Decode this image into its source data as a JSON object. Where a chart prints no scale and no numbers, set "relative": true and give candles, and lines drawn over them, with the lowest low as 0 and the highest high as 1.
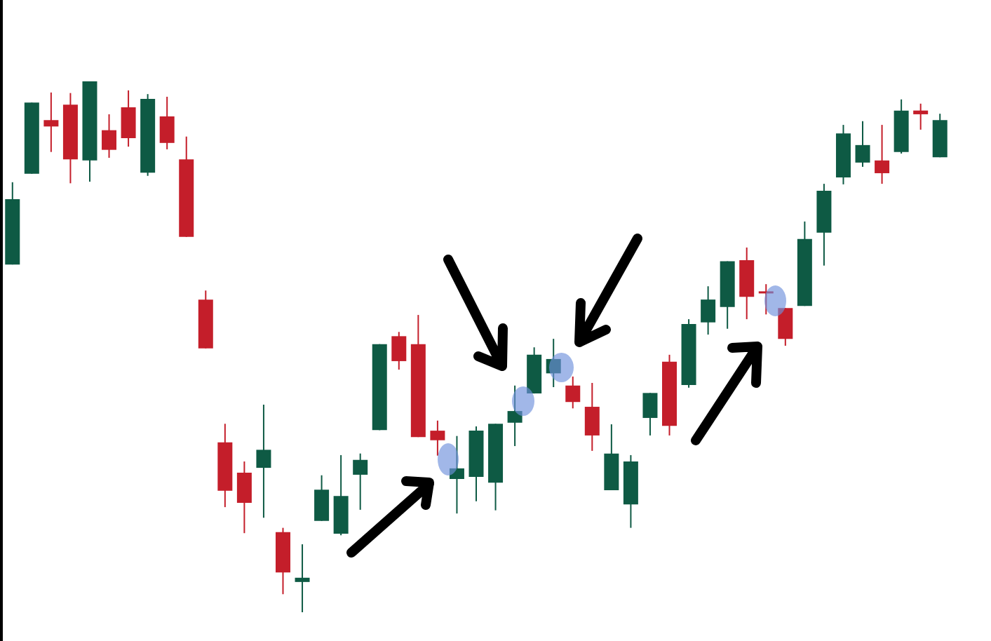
{
  "chart_data": {
    "type": "candlestick",
    "relative": true,
    "categories": [
      null,
      null,
      null,
      null,
      null,
      null,
      null,
      null,
      null,
      null,
      null,
      null,
      null,
      null,
      null,
      null,
      null,
      null,
      null,
      null,
      null,
      null,
      null,
      null,
      null,
      null,
      null,
      null,
      null,
      null,
      null,
      null,
      null,
      null,
      null,
      null,
      null,
      null,
      null,
      null,
      null,
      null,
      null,
      null,
      null,
      null,
      null,
      null,
      null
    ],
    "ohlc": [
      [
        0.655,
        0.81,
        0.655,
        0.778
      ],
      [
        0.826,
        0.96,
        0.826,
        0.96
      ],
      [
        0.927,
        0.979,
        0.867,
        0.915
      ],
      [
        0.956,
        0.978,
        0.808,
        0.853
      ],
      [
        0.851,
        1.0,
        0.811,
        1.0
      ],
      [
        0.908,
        0.938,
        0.856,
        0.871
      ],
      [
        0.951,
        0.983,
        0.877,
        0.893
      ],
      [
        0.828,
        0.976,
        0.822,
        0.967
      ],
      [
        0.934,
        0.971,
        0.872,
        0.884
      ],
      [
        0.853,
        0.896,
        0.707,
        0.707
      ],
      [
        0.589,
        0.606,
        0.497,
        0.497
      ],
      [
        0.32,
        0.355,
        0.198,
        0.229
      ],
      [
        0.263,
        0.284,
        0.149,
        0.206
      ],
      [
        0.272,
        0.391,
        0.178,
        0.306
      ],
      [
        0.151,
        0.159,
        0.034,
        0.075
      ],
      [
        0.057,
        0.128,
        0.0,
        0.065
      ],
      [
        0.172,
        0.258,
        0.172,
        0.231
      ],
      [
        0.148,
        0.296,
        0.145,
        0.219
      ],
      [
        0.259,
        0.299,
        0.193,
        0.287
      ],
      [
        0.343,
        0.505,
        0.343,
        0.505
      ],
      [
        0.52,
        0.528,
        0.457,
        0.473
      ],
      [
        0.505,
        0.56,
        0.33,
        0.33
      ],
      [
        0.342,
        0.361,
        0.295,
        0.324
      ],
      [
        0.251,
        0.332,
        0.186,
        0.271
      ],
      [
        0.255,
        0.35,
        0.209,
        0.342
      ],
      [
        0.244,
        0.355,
        0.192,
        0.355
      ],
      [
        0.357,
        0.427,
        0.313,
        0.379
      ],
      [
        0.412,
        0.499,
        0.412,
        0.485
      ],
      [
        0.45,
        0.515,
        0.424,
        0.477
      ],
      [
        0.427,
        0.444,
        0.384,
        0.396
      ],
      [
        0.387,
        0.432,
        0.304,
        0.333
      ],
      [
        0.23,
        0.354,
        0.23,
        0.299
      ],
      [
        0.203,
        0.296,
        0.159,
        0.284
      ],
      [
        0.366,
        0.413,
        0.333,
        0.413
      ],
      [
        0.472,
        0.485,
        0.333,
        0.351
      ],
      [
        0.428,
        0.552,
        0.423,
        0.543
      ],
      [
        0.546,
        0.614,
        0.523,
        0.589
      ],
      [
        0.575,
        0.661,
        0.534,
        0.661
      ],
      [
        0.663,
        0.687,
        0.552,
        0.594
      ],
      [
        0.604,
        0.618,
        0.561,
        0.601
      ],
      [
        0.573,
        0.573,
        0.502,
        0.515
      ],
      [
        0.577,
        0.736,
        0.577,
        0.703
      ],
      [
        0.715,
        0.807,
        0.653,
        0.794
      ],
      [
        0.819,
        0.918,
        0.806,
        0.902
      ],
      [
        0.847,
        0.925,
        0.839,
        0.88
      ],
      [
        0.851,
        0.918,
        0.807,
        0.827
      ],
      [
        0.867,
        0.966,
        0.864,
        0.945
      ],
      [
        0.945,
        0.958,
        0.909,
        0.938
      ],
      [
        0.857,
        0.939,
        0.857,
        0.927
      ]
    ],
    "colors": [
      "#0e5a44",
      "#0e5a44",
      "#c41e2a",
      "#c41e2a",
      "#0e5a44",
      "#c41e2a",
      "#c41e2a",
      "#0e5a44",
      "#c41e2a",
      "#c41e2a",
      "#c41e2a",
      "#c41e2a",
      "#c41e2a",
      "#0e5a44",
      "#c41e2a",
      "#0e5a44",
      "#0e5a44",
      "#0e5a44",
      "#0e5a44",
      "#0e5a44",
      "#c41e2a",
      "#c41e2a",
      "#c41e2a",
      "#0e5a44",
      "#0e5a44",
      "#0e5a44",
      "#0e5a44",
      "#0e5a44",
      "#0e5a44",
      "#c41e2a",
      "#c41e2a",
      "#0e5a44",
      "#0e5a44",
      "#0e5a44",
      "#c41e2a",
      "#0e5a44",
      "#0e5a44",
      "#0e5a44",
      "#c41e2a",
      "#c41e2a",
      "#c41e2a",
      "#0e5a44",
      "#0e5a44",
      "#0e5a44",
      "#0e5a44",
      "#c41e2a",
      "#0e5a44",
      "#c41e2a",
      "#0e5a44"
    ]
  }
}
